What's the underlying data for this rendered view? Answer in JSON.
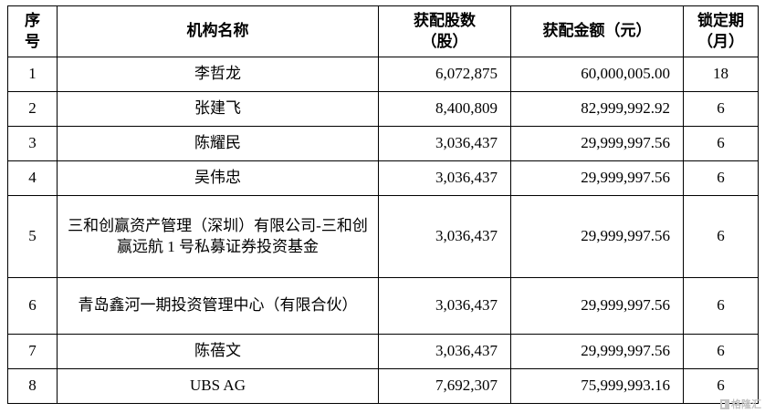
{
  "table": {
    "headers": [
      {
        "key": "no",
        "lines": [
          "序",
          "号"
        ]
      },
      {
        "key": "name",
        "lines": [
          "机构名称"
        ]
      },
      {
        "key": "shares",
        "lines": [
          "获配股数",
          "（股）"
        ]
      },
      {
        "key": "amount",
        "lines": [
          "获配金额（元）"
        ]
      },
      {
        "key": "lock",
        "lines": [
          "锁定期",
          "（月）"
        ]
      }
    ],
    "columns": [
      "no",
      "name",
      "shares",
      "amount",
      "lock"
    ],
    "rows": [
      {
        "no": "1",
        "name": "李哲龙",
        "shares": "6,072,875",
        "amount": "60,000,005.00",
        "lock": "18"
      },
      {
        "no": "2",
        "name": "张建飞",
        "shares": "8,400,809",
        "amount": "82,999,992.92",
        "lock": "6"
      },
      {
        "no": "3",
        "name": "陈耀民",
        "shares": "3,036,437",
        "amount": "29,999,997.56",
        "lock": "6"
      },
      {
        "no": "4",
        "name": "吴伟忠",
        "shares": "3,036,437",
        "amount": "29,999,997.56",
        "lock": "6"
      },
      {
        "no": "5",
        "name": "三和创赢资产管理（深圳）有限公司-三和创赢远航 1 号私募证券投资基金",
        "shares": "3,036,437",
        "amount": "29,999,997.56",
        "lock": "6"
      },
      {
        "no": "6",
        "name": "青岛鑫河一期投资管理中心（有限合伙）",
        "shares": "3,036,437",
        "amount": "29,999,997.56",
        "lock": "6"
      },
      {
        "no": "7",
        "name": "陈蓓文",
        "shares": "3,036,437",
        "amount": "29,999,997.56",
        "lock": "6"
      },
      {
        "no": "8",
        "name": "UBS AG",
        "shares": "7,692,307",
        "amount": "75,999,993.16",
        "lock": "6"
      }
    ]
  },
  "watermark": {
    "text": "格隆汇"
  }
}
